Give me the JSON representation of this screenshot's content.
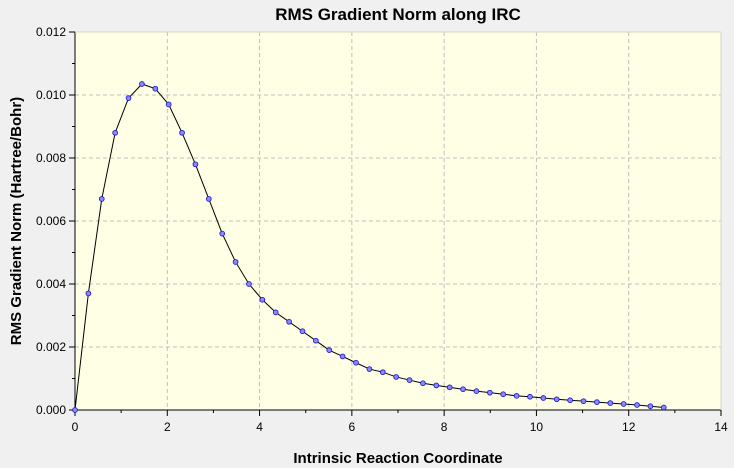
{
  "chart_data": {
    "type": "line",
    "title": "RMS Gradient Norm along IRC",
    "xlabel": "Intrinsic Reaction Coordinate",
    "ylabel": "RMS Gradient Norm (Hartree/Bohr)",
    "xlim": [
      0,
      14
    ],
    "ylim": [
      0,
      0.012
    ],
    "x_ticks": [
      0,
      2,
      4,
      6,
      8,
      10,
      12,
      14
    ],
    "y_ticks": [
      0.0,
      0.002,
      0.004,
      0.006,
      0.008,
      0.01,
      0.012
    ],
    "x_tick_labels": [
      "0",
      "2",
      "4",
      "6",
      "8",
      "10",
      "12",
      "14"
    ],
    "y_tick_labels": [
      "0.000",
      "0.002",
      "0.004",
      "0.006",
      "0.008",
      "0.010",
      "0.012"
    ],
    "grid": true,
    "colors": {
      "plot_background": "#ffffe6",
      "page_background": "#f0f0f0",
      "line": "#000000",
      "marker_fill": "#8a8af5",
      "marker_stroke": "#1f1fd1",
      "grid": "#bfbfbf"
    },
    "series": [
      {
        "x": [
          0.0,
          0.29,
          0.58,
          0.87,
          1.16,
          1.45,
          1.74,
          2.03,
          2.32,
          2.61,
          2.9,
          3.19,
          3.48,
          3.77,
          4.06,
          4.35,
          4.64,
          4.93,
          5.22,
          5.51,
          5.8,
          6.09,
          6.38,
          6.67,
          6.96,
          7.25,
          7.54,
          7.83,
          8.12,
          8.41,
          8.7,
          8.99,
          9.28,
          9.57,
          9.86,
          10.15,
          10.44,
          10.73,
          11.02,
          11.31,
          11.6,
          11.89,
          12.18,
          12.47,
          12.76
        ],
        "y": [
          0.0,
          0.0037,
          0.0067,
          0.0088,
          0.0099,
          0.01035,
          0.0102,
          0.0097,
          0.0088,
          0.0078,
          0.0067,
          0.0056,
          0.0047,
          0.004,
          0.0035,
          0.0031,
          0.0028,
          0.0025,
          0.0022,
          0.0019,
          0.0017,
          0.0015,
          0.0013,
          0.0012,
          0.00105,
          0.00095,
          0.00085,
          0.00078,
          0.00072,
          0.00066,
          0.0006,
          0.00055,
          0.0005,
          0.00045,
          0.00042,
          0.00038,
          0.00034,
          0.00031,
          0.00028,
          0.00025,
          0.00022,
          0.00019,
          0.00016,
          0.00012,
          8e-05
        ]
      }
    ]
  }
}
